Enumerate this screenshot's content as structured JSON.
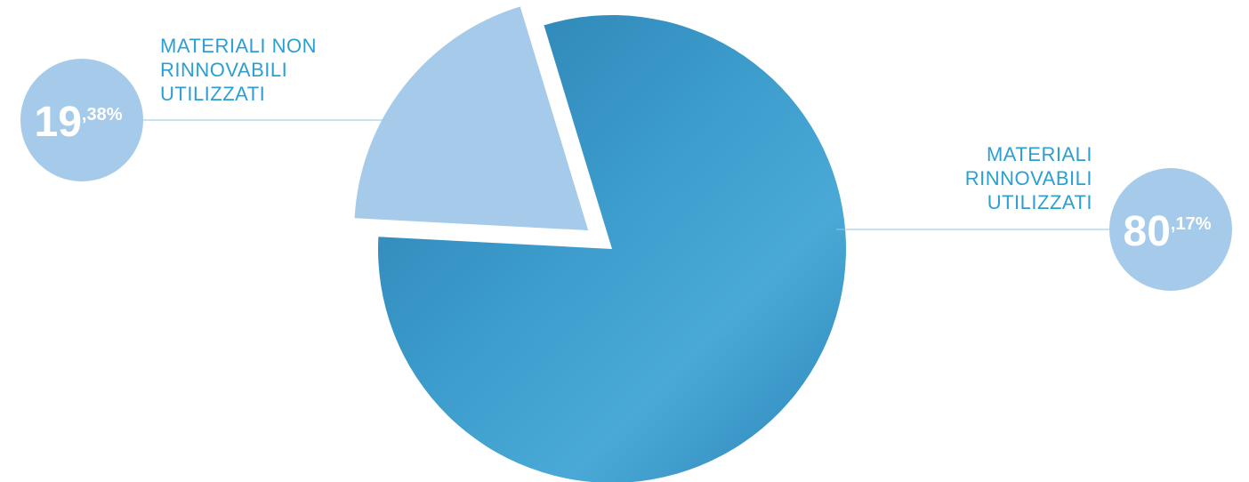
{
  "chart_data": {
    "type": "pie",
    "categories": [
      "MATERIALI NON RINNOVABILI UTILIZZATI",
      "MATERIALI RINNOVABILI UTILIZZATI"
    ],
    "values": [
      19.38,
      80.17
    ],
    "value_labels": [
      "19,38%",
      "80,17%"
    ],
    "colors": [
      "#a6cbea",
      "#3a98c8"
    ]
  }
}
